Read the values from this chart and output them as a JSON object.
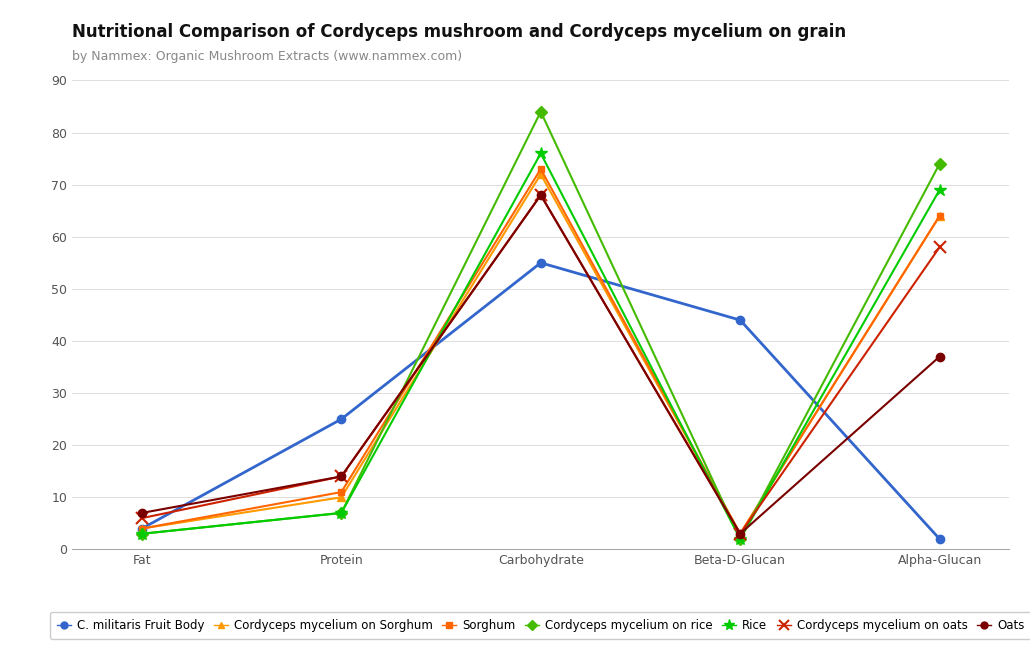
{
  "title": "Nutritional Comparison of Cordyceps mushroom and Cordyceps mycelium on grain",
  "subtitle": "by Nammex: Organic Mushroom Extracts (www.nammex.com)",
  "categories": [
    "Fat",
    "Protein",
    "Carbohydrate",
    "Beta-D-Glucan",
    "Alpha-Glucan"
  ],
  "series": [
    {
      "name": "C. militaris Fruit Body",
      "values": [
        4,
        25,
        55,
        44,
        2
      ],
      "color": "#3366cc",
      "marker": "o",
      "markersize": 6,
      "linewidth": 2.0
    },
    {
      "name": "Cordyceps mycelium on Sorghum",
      "values": [
        4,
        10,
        72,
        3,
        64
      ],
      "color": "#ff9900",
      "marker": "^",
      "markersize": 6,
      "linewidth": 1.5
    },
    {
      "name": "Sorghum",
      "values": [
        4,
        11,
        73,
        3,
        64
      ],
      "color": "#ff6600",
      "marker": "s",
      "markersize": 5,
      "linewidth": 1.5
    },
    {
      "name": "Cordyceps mycelium on rice",
      "values": [
        3,
        7,
        84,
        2,
        74
      ],
      "color": "#44bb00",
      "marker": "D",
      "markersize": 6,
      "linewidth": 1.5
    },
    {
      "name": "Rice",
      "values": [
        3,
        7,
        76,
        2,
        69
      ],
      "color": "#00cc00",
      "marker": "*",
      "markersize": 9,
      "linewidth": 1.5
    },
    {
      "name": "Cordyceps mycelium on oats",
      "values": [
        6,
        14,
        68,
        3,
        58
      ],
      "color": "#cc2200",
      "marker": "x",
      "markersize": 8,
      "linewidth": 1.5,
      "markeredgewidth": 1.5
    },
    {
      "name": "Oats",
      "values": [
        7,
        14,
        68,
        3,
        37
      ],
      "color": "#7a0000",
      "marker": "o",
      "markersize": 6,
      "linewidth": 1.5
    }
  ],
  "ylim": [
    0,
    90
  ],
  "yticks": [
    0,
    10,
    20,
    30,
    40,
    50,
    60,
    70,
    80,
    90
  ],
  "background_color": "#ffffff",
  "grid_color": "#dddddd",
  "title_fontsize": 12,
  "subtitle_fontsize": 9,
  "tick_fontsize": 9,
  "legend_fontsize": 8.5,
  "legend_border_color": "#cccccc"
}
